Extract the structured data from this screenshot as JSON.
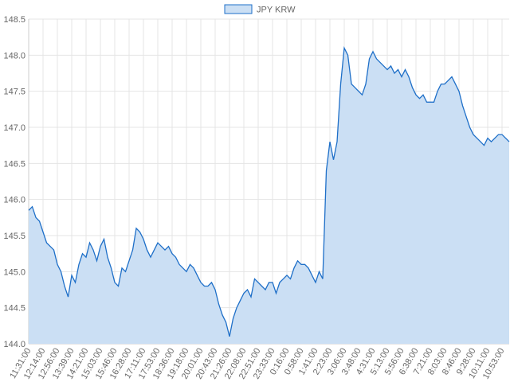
{
  "chart_data": {
    "type": "line",
    "categories": [
      "11:31:00",
      null,
      null,
      null,
      "12:14:00",
      null,
      null,
      null,
      "12:56:00",
      null,
      null,
      null,
      "13:39:00",
      null,
      null,
      null,
      "14:21:00",
      null,
      null,
      null,
      "15:03:00",
      null,
      null,
      null,
      "15:46:00",
      null,
      null,
      null,
      "16:28:00",
      null,
      null,
      null,
      "17:11:00",
      null,
      null,
      null,
      "17:53:00",
      null,
      null,
      null,
      "18:36:00",
      null,
      null,
      null,
      "19:18:00",
      null,
      null,
      null,
      "20:01:00",
      null,
      null,
      null,
      "20:43:00",
      null,
      null,
      null,
      "21:26:00",
      null,
      null,
      null,
      "22:08:00",
      null,
      null,
      null,
      "22:51:00",
      null,
      null,
      null,
      "23:33:00",
      null,
      null,
      null,
      "0:16:00",
      null,
      null,
      null,
      "0:58:00",
      null,
      null,
      null,
      "1:41:00",
      null,
      null,
      null,
      "2:23:00",
      null,
      null,
      null,
      "3:06:00",
      null,
      null,
      null,
      "3:48:00",
      null,
      null,
      null,
      "4:31:00",
      null,
      null,
      null,
      "5:13:00",
      null,
      null,
      null,
      "5:56:00",
      null,
      null,
      null,
      "6:38:00",
      null,
      null,
      null,
      "7:21:00",
      null,
      null,
      null,
      "8:03:00",
      null,
      null,
      null,
      "8:46:00",
      null,
      null,
      null,
      "9:28:00",
      null,
      null,
      null,
      "10:11:00",
      null,
      null,
      null,
      "10:53:00",
      null,
      null
    ],
    "series": [
      {
        "name": "JPY KRW",
        "color": "#1e6fc8",
        "fill": "#cbdff4",
        "values": [
          145.85,
          145.9,
          145.75,
          145.7,
          145.55,
          145.4,
          145.35,
          145.3,
          145.1,
          145.0,
          144.8,
          144.65,
          144.95,
          144.85,
          145.1,
          145.25,
          145.2,
          145.4,
          145.3,
          145.15,
          145.35,
          145.45,
          145.2,
          145.05,
          144.85,
          144.8,
          145.05,
          145.0,
          145.15,
          145.3,
          145.6,
          145.55,
          145.45,
          145.3,
          145.2,
          145.3,
          145.4,
          145.35,
          145.3,
          145.35,
          145.25,
          145.2,
          145.1,
          145.05,
          145.0,
          145.1,
          145.05,
          144.95,
          144.85,
          144.8,
          144.8,
          144.85,
          144.75,
          144.55,
          144.4,
          144.3,
          144.1,
          144.35,
          144.5,
          144.6,
          144.7,
          144.75,
          144.65,
          144.9,
          144.85,
          144.8,
          144.75,
          144.85,
          144.85,
          144.7,
          144.85,
          144.9,
          144.95,
          144.9,
          145.05,
          145.15,
          145.1,
          145.1,
          145.05,
          144.95,
          144.85,
          145.0,
          144.9,
          146.4,
          146.8,
          146.55,
          146.8,
          147.6,
          148.1,
          148.0,
          147.6,
          147.55,
          147.5,
          147.45,
          147.6,
          147.95,
          148.05,
          147.95,
          147.9,
          147.85,
          147.8,
          147.85,
          147.75,
          147.8,
          147.7,
          147.8,
          147.7,
          147.55,
          147.45,
          147.4,
          147.45,
          147.35,
          147.35,
          147.35,
          147.5,
          147.6,
          147.6,
          147.65,
          147.7,
          147.6,
          147.5,
          147.3,
          147.15,
          147.0,
          146.9,
          146.85,
          146.8,
          146.75,
          146.85,
          146.8,
          146.85,
          146.9,
          146.9,
          146.85,
          146.8
        ]
      }
    ],
    "ylim": [
      144,
      148.5
    ],
    "yticks": [
      {
        "value": 144,
        "label": "144.0"
      },
      144.5,
      {
        "value": 145,
        "label": "145.0"
      },
      145.5,
      {
        "value": 146,
        "label": "146.0"
      },
      146.5,
      {
        "value": 147,
        "label": "147.0"
      },
      147.5,
      {
        "value": 148,
        "label": "148.0"
      },
      148.5
    ],
    "grid": true,
    "legend": "top"
  }
}
